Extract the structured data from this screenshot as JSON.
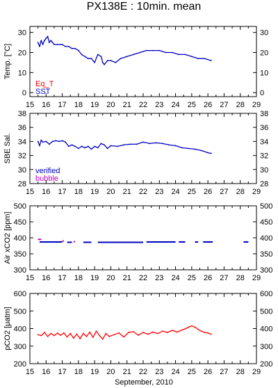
{
  "figure": {
    "title": "PX138E : 10min. mean",
    "xlabel": "September, 2010"
  },
  "chart_data": [
    {
      "type": "line",
      "ylabel": "Temp. [°C]",
      "xlim": [
        15,
        29
      ],
      "ylim": [
        -2,
        33
      ],
      "x_ticks": [
        15,
        16,
        17,
        18,
        19,
        20,
        21,
        22,
        23,
        24,
        25,
        26,
        27,
        28,
        29
      ],
      "y_ticks": [
        0,
        10,
        20,
        30
      ],
      "legend": [
        {
          "name": "Eq_T",
          "color": "#ff0000"
        },
        {
          "name": "SST",
          "color": "#0000c0"
        }
      ],
      "series": [
        {
          "name": "SST",
          "color": "#0000c0",
          "x": [
            15.5,
            15.6,
            15.7,
            15.8,
            15.9,
            16.0,
            16.1,
            16.2,
            16.3,
            16.4,
            16.5,
            16.7,
            16.9,
            17.0,
            17.2,
            17.4,
            17.6,
            17.8,
            18.0,
            18.2,
            18.4,
            18.6,
            18.8,
            19.0,
            19.2,
            19.4,
            19.5,
            19.6,
            19.8,
            20.0,
            20.3,
            20.6,
            21.0,
            21.4,
            21.8,
            22.2,
            22.6,
            23.0,
            23.4,
            23.8,
            24.2,
            24.6,
            25.0,
            25.4,
            25.8,
            26.2
          ],
          "y": [
            25,
            23,
            26,
            24,
            26,
            27,
            28,
            25,
            26,
            25,
            24,
            24,
            24,
            24,
            23,
            23,
            22,
            22,
            21,
            19,
            18,
            17,
            17,
            15,
            19,
            18,
            15,
            14,
            16,
            16,
            15,
            17,
            18,
            19,
            20,
            21,
            21,
            21,
            20,
            20,
            19,
            19,
            18,
            17,
            17,
            16
          ]
        }
      ]
    },
    {
      "type": "line",
      "ylabel": "SBE Sal.",
      "xlim": [
        15,
        29
      ],
      "ylim": [
        28,
        38
      ],
      "x_ticks": [
        15,
        16,
        17,
        18,
        19,
        20,
        21,
        22,
        23,
        24,
        25,
        26,
        27,
        28,
        29
      ],
      "y_ticks": [
        28,
        30,
        32,
        34,
        36,
        38
      ],
      "legend": [
        {
          "name": "verified",
          "color": "#0000c0"
        },
        {
          "name": "bubble",
          "color": "#c000c0"
        }
      ],
      "series": [
        {
          "name": "verified",
          "color": "#0000c0",
          "x": [
            15.5,
            15.6,
            15.7,
            15.8,
            16.0,
            16.2,
            16.4,
            16.6,
            16.8,
            17.0,
            17.2,
            17.4,
            17.6,
            17.8,
            18.0,
            18.2,
            18.4,
            18.6,
            18.8,
            19.0,
            19.2,
            19.4,
            19.6,
            19.8,
            20.0,
            20.4,
            20.8,
            21.2,
            21.6,
            22.0,
            22.4,
            22.8,
            23.2,
            23.6,
            24.0,
            24.4,
            24.8,
            25.2,
            25.6,
            26.0,
            26.2
          ],
          "y": [
            34.0,
            33.4,
            34.2,
            33.9,
            34.0,
            33.6,
            34.0,
            34.1,
            34.0,
            34.1,
            33.9,
            33.3,
            33.5,
            33.3,
            33.0,
            33.3,
            33.1,
            33.3,
            32.9,
            33.3,
            33.1,
            33.7,
            33.5,
            33.0,
            33.4,
            33.3,
            33.5,
            33.6,
            33.6,
            33.9,
            33.7,
            33.8,
            33.7,
            33.5,
            33.4,
            33.1,
            33.0,
            32.9,
            32.7,
            32.4,
            32.3
          ]
        }
      ]
    },
    {
      "type": "scatter",
      "ylabel": "Air xCO2 [ppm]",
      "xlim": [
        15,
        29
      ],
      "ylim": [
        300,
        500
      ],
      "x_ticks": [
        15,
        16,
        17,
        18,
        19,
        20,
        21,
        22,
        23,
        24,
        25,
        26,
        27,
        28,
        29
      ],
      "y_ticks": [
        300,
        350,
        400,
        450,
        500
      ],
      "series": [
        {
          "name": "",
          "color": "#0000c0",
          "segments": [
            [
              15.6,
              17.0,
              387
            ],
            [
              17.3,
              17.6,
              386
            ],
            [
              18.3,
              18.8,
              386
            ],
            [
              19.2,
              22.0,
              386
            ],
            [
              22.2,
              24.0,
              387
            ],
            [
              24.2,
              24.6,
              387
            ],
            [
              25.2,
              25.4,
              387
            ],
            [
              25.7,
              26.3,
              387
            ],
            [
              28.2,
              28.5,
              387
            ]
          ]
        },
        {
          "name": "",
          "color": "#c000c0",
          "segments": [
            [
              15.5,
              15.7,
              395
            ],
            [
              17.0,
              17.1,
              390
            ],
            [
              17.7,
              17.8,
              388
            ]
          ]
        }
      ]
    },
    {
      "type": "line",
      "ylabel": "pCO2 [μatm]",
      "xlim": [
        15,
        29
      ],
      "ylim": [
        200,
        600
      ],
      "x_ticks": [
        15,
        16,
        17,
        18,
        19,
        20,
        21,
        22,
        23,
        24,
        25,
        26,
        27,
        28,
        29
      ],
      "y_ticks": [
        200,
        300,
        400,
        500,
        600
      ],
      "series": [
        {
          "name": "",
          "color": "#ff0000",
          "x": [
            15.5,
            15.7,
            15.9,
            16.1,
            16.3,
            16.5,
            16.7,
            16.9,
            17.1,
            17.3,
            17.5,
            17.7,
            17.9,
            18.1,
            18.3,
            18.5,
            18.7,
            18.9,
            19.1,
            19.3,
            19.5,
            19.7,
            19.9,
            20.2,
            20.5,
            20.8,
            21.1,
            21.4,
            21.7,
            22.0,
            22.3,
            22.6,
            22.9,
            23.2,
            23.5,
            23.8,
            24.1,
            24.4,
            24.6,
            24.8,
            25.0,
            25.2,
            25.4,
            25.6,
            25.8,
            26.0,
            26.2
          ],
          "y": [
            365,
            360,
            378,
            355,
            372,
            360,
            374,
            362,
            375,
            352,
            372,
            345,
            368,
            342,
            372,
            355,
            380,
            350,
            385,
            360,
            340,
            372,
            355,
            365,
            375,
            352,
            378,
            382,
            362,
            378,
            368,
            380,
            372,
            385,
            378,
            390,
            380,
            392,
            398,
            408,
            415,
            408,
            395,
            385,
            378,
            375,
            368
          ]
        }
      ]
    }
  ]
}
